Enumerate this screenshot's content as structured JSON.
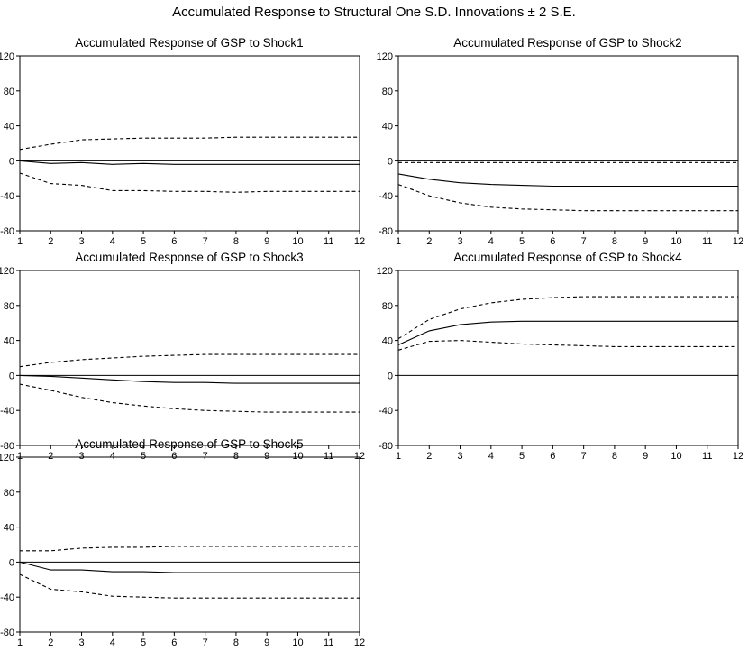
{
  "page_title": "Accumulated Response to Structural One S.D. Innovations ± 2 S.E.",
  "chart_data": [
    {
      "type": "line",
      "title": "Accumulated Response of GSP to Shock1",
      "x": [
        1,
        2,
        3,
        4,
        5,
        6,
        7,
        8,
        9,
        10,
        11,
        12
      ],
      "ylim": [
        -80,
        120
      ],
      "yticks": [
        -80,
        -40,
        0,
        40,
        80,
        120
      ],
      "series": [
        {
          "role": "response",
          "style": "solid",
          "values": [
            0,
            -3,
            -2,
            -4,
            -3,
            -4,
            -4,
            -4,
            -4,
            -4,
            -4,
            -4
          ]
        },
        {
          "role": "upper",
          "style": "dashed",
          "values": [
            13,
            19,
            24,
            25,
            26,
            26,
            26,
            27,
            27,
            27,
            27,
            27
          ]
        },
        {
          "role": "lower",
          "style": "dashed",
          "values": [
            -14,
            -26,
            -28,
            -34,
            -34,
            -35,
            -35,
            -36,
            -35,
            -35,
            -35,
            -35
          ]
        }
      ]
    },
    {
      "type": "line",
      "title": "Accumulated Response of GSP to Shock2",
      "x": [
        1,
        2,
        3,
        4,
        5,
        6,
        7,
        8,
        9,
        10,
        11,
        12
      ],
      "ylim": [
        -80,
        120
      ],
      "yticks": [
        -80,
        -40,
        0,
        40,
        80,
        120
      ],
      "series": [
        {
          "role": "response",
          "style": "solid",
          "values": [
            -15,
            -21,
            -25,
            -27,
            -28,
            -29,
            -29,
            -29,
            -29,
            -29,
            -29,
            -29
          ]
        },
        {
          "role": "upper",
          "style": "dashed",
          "values": [
            -2,
            -2,
            -2,
            -2,
            -2,
            -2,
            -2,
            -2,
            -2,
            -2,
            -2,
            -2
          ]
        },
        {
          "role": "lower",
          "style": "dashed",
          "values": [
            -27,
            -40,
            -48,
            -53,
            -55,
            -56,
            -57,
            -57,
            -57,
            -57,
            -57,
            -57
          ]
        }
      ]
    },
    {
      "type": "line",
      "title": "Accumulated Response of GSP to Shock3",
      "x": [
        1,
        2,
        3,
        4,
        5,
        6,
        7,
        8,
        9,
        10,
        11,
        12
      ],
      "ylim": [
        -80,
        120
      ],
      "yticks": [
        -80,
        -40,
        0,
        40,
        80,
        120
      ],
      "series": [
        {
          "role": "response",
          "style": "solid",
          "values": [
            0,
            -1,
            -3,
            -5,
            -7,
            -8,
            -8,
            -9,
            -9,
            -9,
            -9,
            -9
          ]
        },
        {
          "role": "upper",
          "style": "dashed",
          "values": [
            10,
            15,
            18,
            20,
            22,
            23,
            24,
            24,
            24,
            24,
            24,
            24
          ]
        },
        {
          "role": "lower",
          "style": "dashed",
          "values": [
            -10,
            -17,
            -25,
            -31,
            -35,
            -38,
            -40,
            -41,
            -42,
            -42,
            -42,
            -42
          ]
        }
      ]
    },
    {
      "type": "line",
      "title": "Accumulated Response of GSP to Shock4",
      "x": [
        1,
        2,
        3,
        4,
        5,
        6,
        7,
        8,
        9,
        10,
        11,
        12
      ],
      "ylim": [
        -80,
        120
      ],
      "yticks": [
        -80,
        -40,
        0,
        40,
        80,
        120
      ],
      "series": [
        {
          "role": "response",
          "style": "solid",
          "values": [
            35,
            51,
            58,
            61,
            62,
            62,
            62,
            62,
            62,
            62,
            62,
            62
          ]
        },
        {
          "role": "upper",
          "style": "dashed",
          "values": [
            42,
            64,
            76,
            83,
            87,
            89,
            90,
            90,
            90,
            90,
            90,
            90
          ]
        },
        {
          "role": "lower",
          "style": "dashed",
          "values": [
            29,
            39,
            40,
            38,
            36,
            35,
            34,
            33,
            33,
            33,
            33,
            33
          ]
        }
      ]
    },
    {
      "type": "line",
      "title": "Accumulated Response of GSP to Shock5",
      "x": [
        1,
        2,
        3,
        4,
        5,
        6,
        7,
        8,
        9,
        10,
        11,
        12
      ],
      "ylim": [
        -80,
        120
      ],
      "yticks": [
        -80,
        -40,
        0,
        40,
        80,
        120
      ],
      "series": [
        {
          "role": "response",
          "style": "solid",
          "values": [
            0,
            -9,
            -9,
            -11,
            -11,
            -12,
            -12,
            -12,
            -12,
            -12,
            -12,
            -12
          ]
        },
        {
          "role": "upper",
          "style": "dashed",
          "values": [
            13,
            13,
            16,
            17,
            17,
            18,
            18,
            18,
            18,
            18,
            18,
            18
          ]
        },
        {
          "role": "lower",
          "style": "dashed",
          "values": [
            -14,
            -31,
            -34,
            -39,
            -40,
            -41,
            -41,
            -41,
            -41,
            -41,
            -41,
            -41
          ]
        }
      ]
    }
  ]
}
